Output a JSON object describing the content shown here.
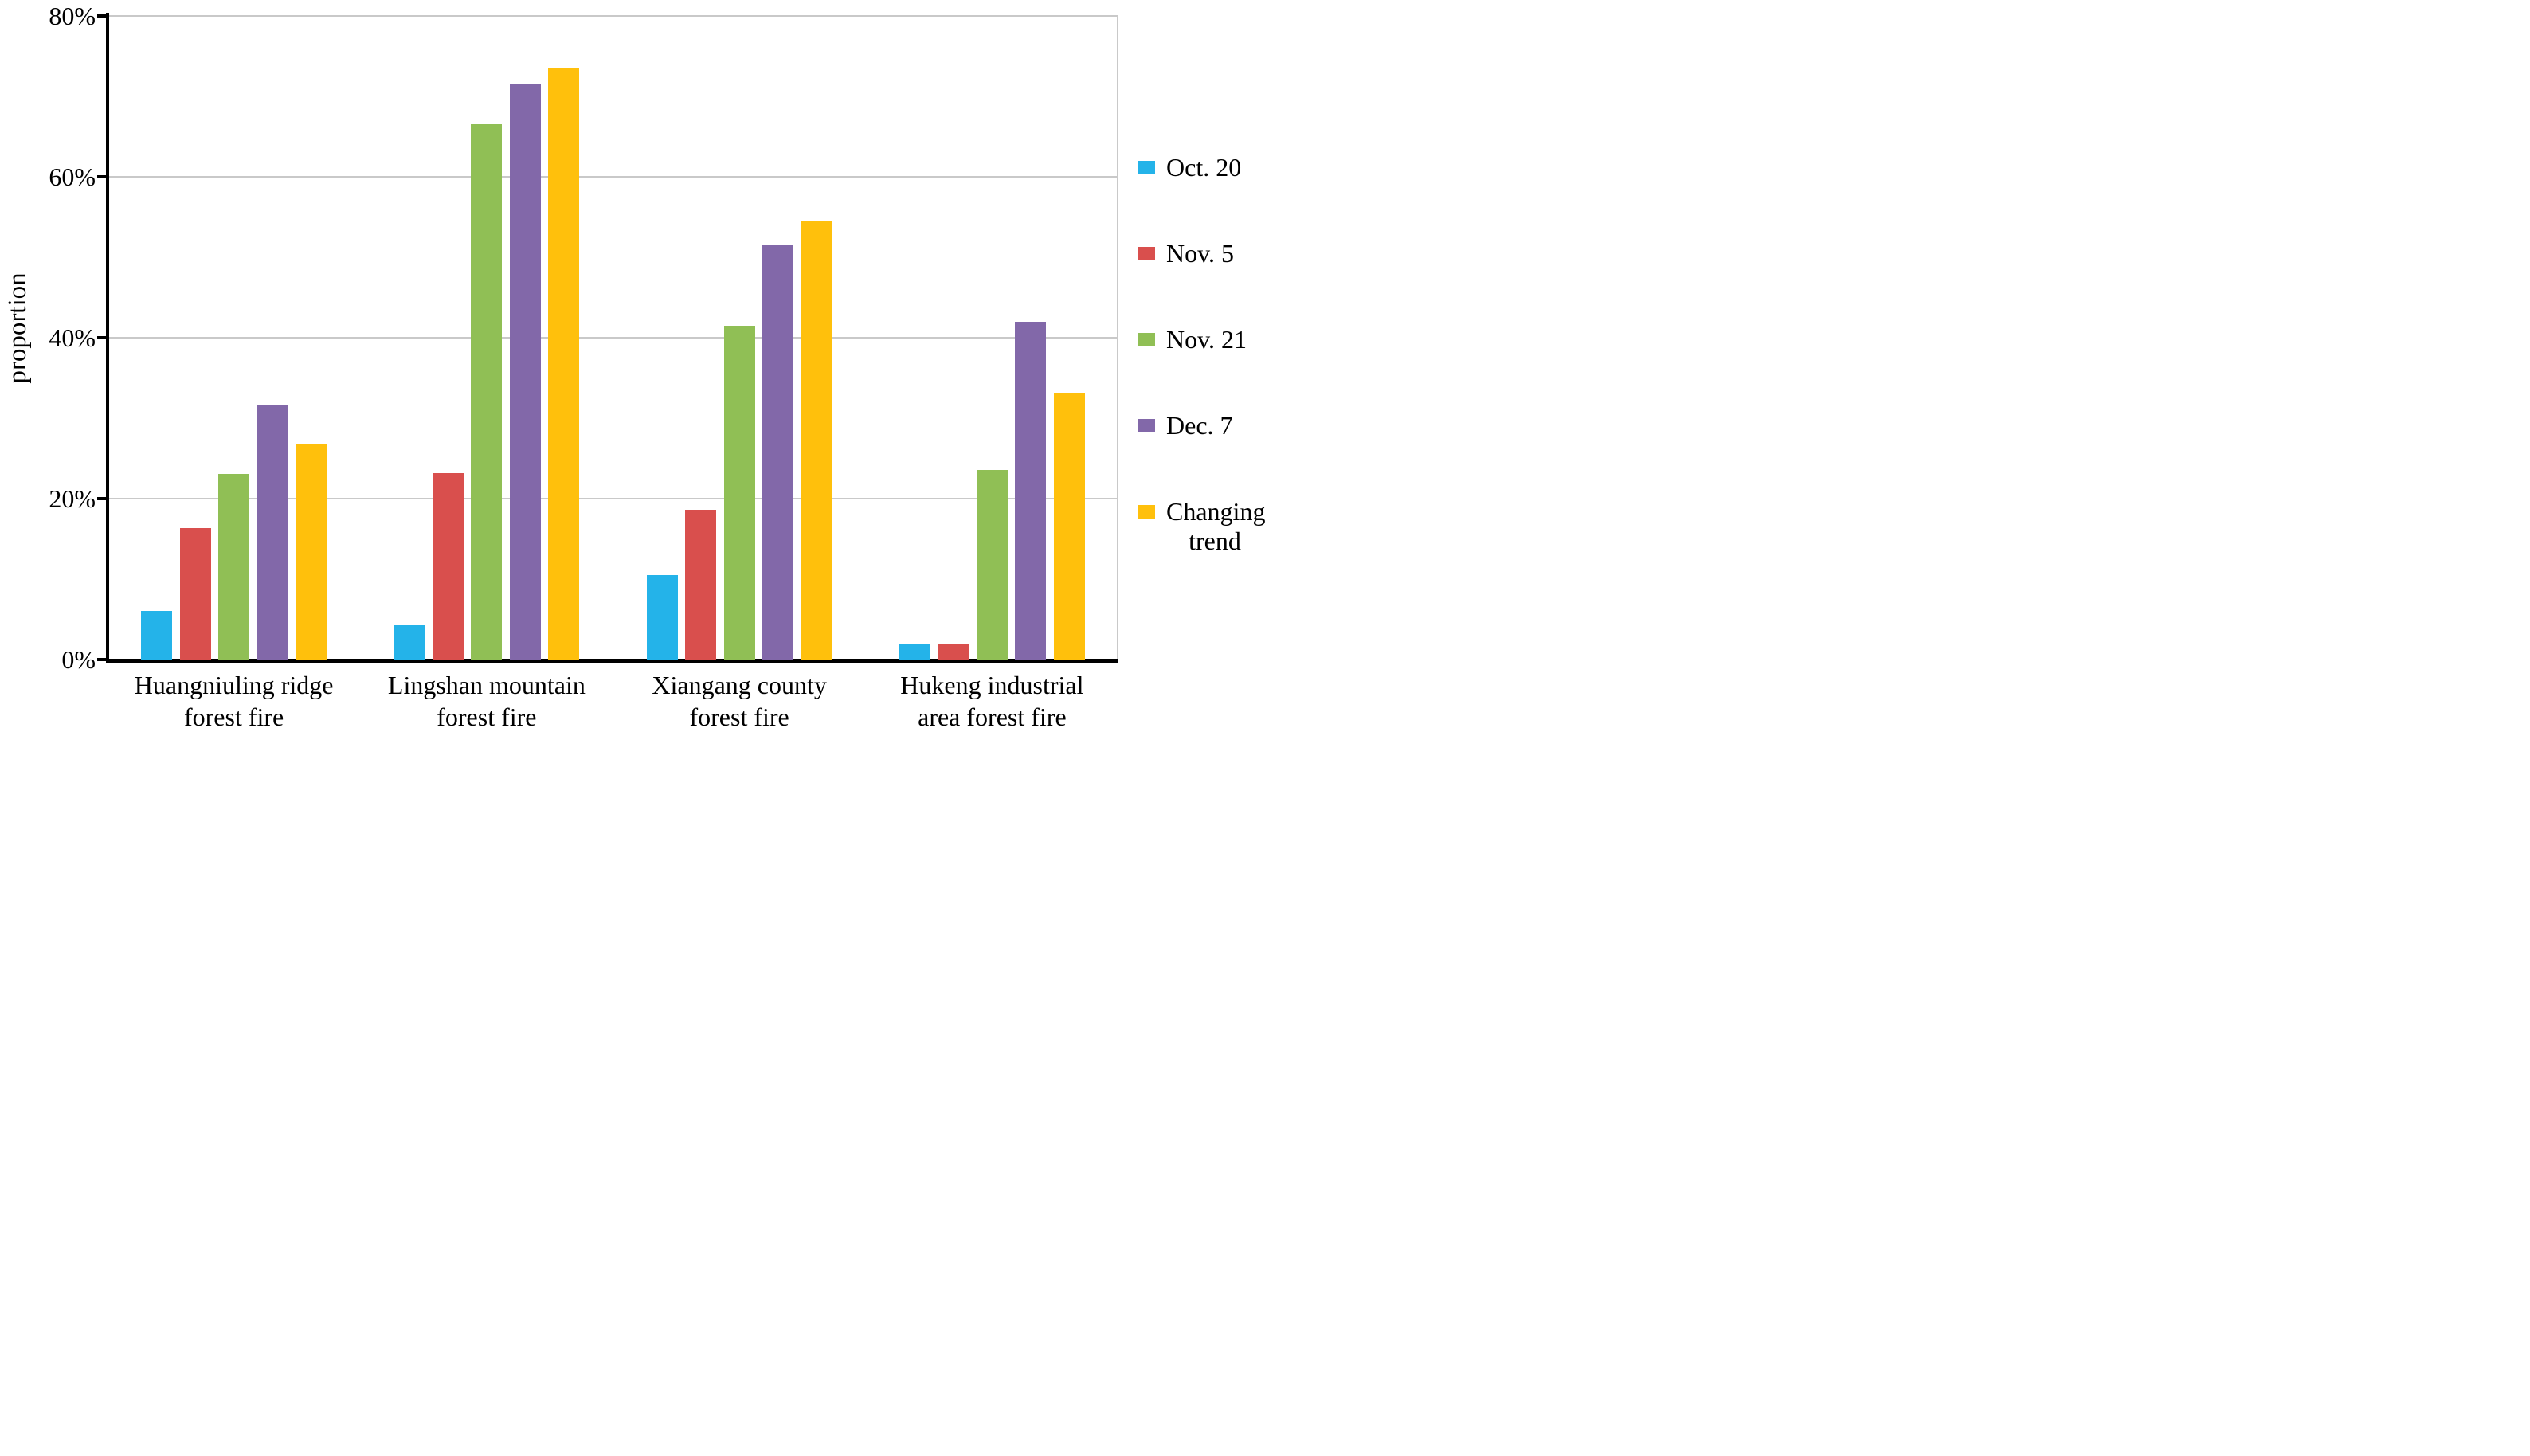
{
  "figure": {
    "background": "#ffffff",
    "axis_color": "#000000",
    "gridline_color": "#c9c9c9"
  },
  "chart_data": {
    "type": "bar",
    "title": "",
    "xlabel": "",
    "ylabel": "proportion",
    "ylim": [
      0,
      80
    ],
    "ytick_step": 20,
    "ytick_labels": [
      "0%",
      "20%",
      "40%",
      "60%",
      "80%"
    ],
    "grid": true,
    "legend_position": "right",
    "categories": [
      {
        "line1": "Huangniuling ridge",
        "line2": "forest fire"
      },
      {
        "line1": "Lingshan mountain",
        "line2": "forest fire"
      },
      {
        "line1": "Xiangang county",
        "line2": "forest fire"
      },
      {
        "line1": "Hukeng industrial",
        "line2": "area forest fire"
      }
    ],
    "series": [
      {
        "name": "Oct. 20",
        "color": "#24b3e9",
        "values": [
          6.0,
          4.3,
          10.5,
          2.0
        ]
      },
      {
        "name": "Nov. 5",
        "color": "#d94f4d",
        "values": [
          16.3,
          23.2,
          18.6,
          2.0
        ]
      },
      {
        "name": "Nov. 21",
        "color": "#90bf55",
        "values": [
          23.1,
          66.5,
          41.5,
          23.6
        ]
      },
      {
        "name": "Dec. 7",
        "color": "#8268a9",
        "values": [
          31.7,
          71.6,
          51.5,
          42.0
        ]
      },
      {
        "name": "Changing trend",
        "color": "#ffc00c",
        "values": [
          26.8,
          73.5,
          54.5,
          33.2
        ]
      }
    ]
  },
  "legend": {
    "items": [
      {
        "label": "Oct. 20",
        "wrap": false
      },
      {
        "label": "Nov. 5",
        "wrap": false
      },
      {
        "label": "Nov. 21",
        "wrap": false
      },
      {
        "label": "Dec. 7",
        "wrap": false
      },
      {
        "label": "Changing trend",
        "wrap": true
      }
    ]
  }
}
